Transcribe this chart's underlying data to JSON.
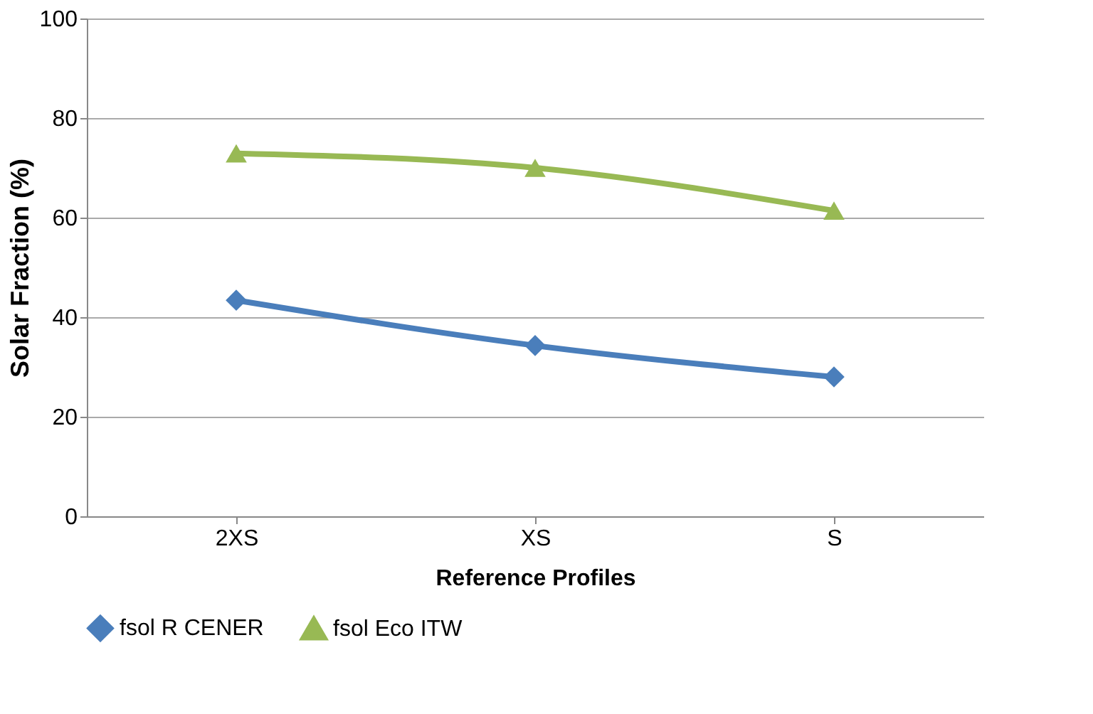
{
  "chart_data": {
    "type": "line",
    "xlabel": "Reference Profiles",
    "ylabel": "Solar Fraction (%)",
    "categories": [
      "2XS",
      "XS",
      "S"
    ],
    "series": [
      {
        "name": "fsol  R  CENER",
        "color": "#4a7ebb",
        "marker": "diamond",
        "values": [
          43.4,
          34.3,
          28
        ]
      },
      {
        "name": "fsol  Eco  ITW",
        "color": "#98b954",
        "marker": "triangle",
        "values": [
          72.9,
          70,
          61.4
        ]
      }
    ],
    "ylim": [
      0,
      100
    ],
    "yticks": [
      0,
      20,
      40,
      60,
      80,
      100
    ],
    "grid": "y",
    "legend": "bottom",
    "line_style": "solid"
  }
}
